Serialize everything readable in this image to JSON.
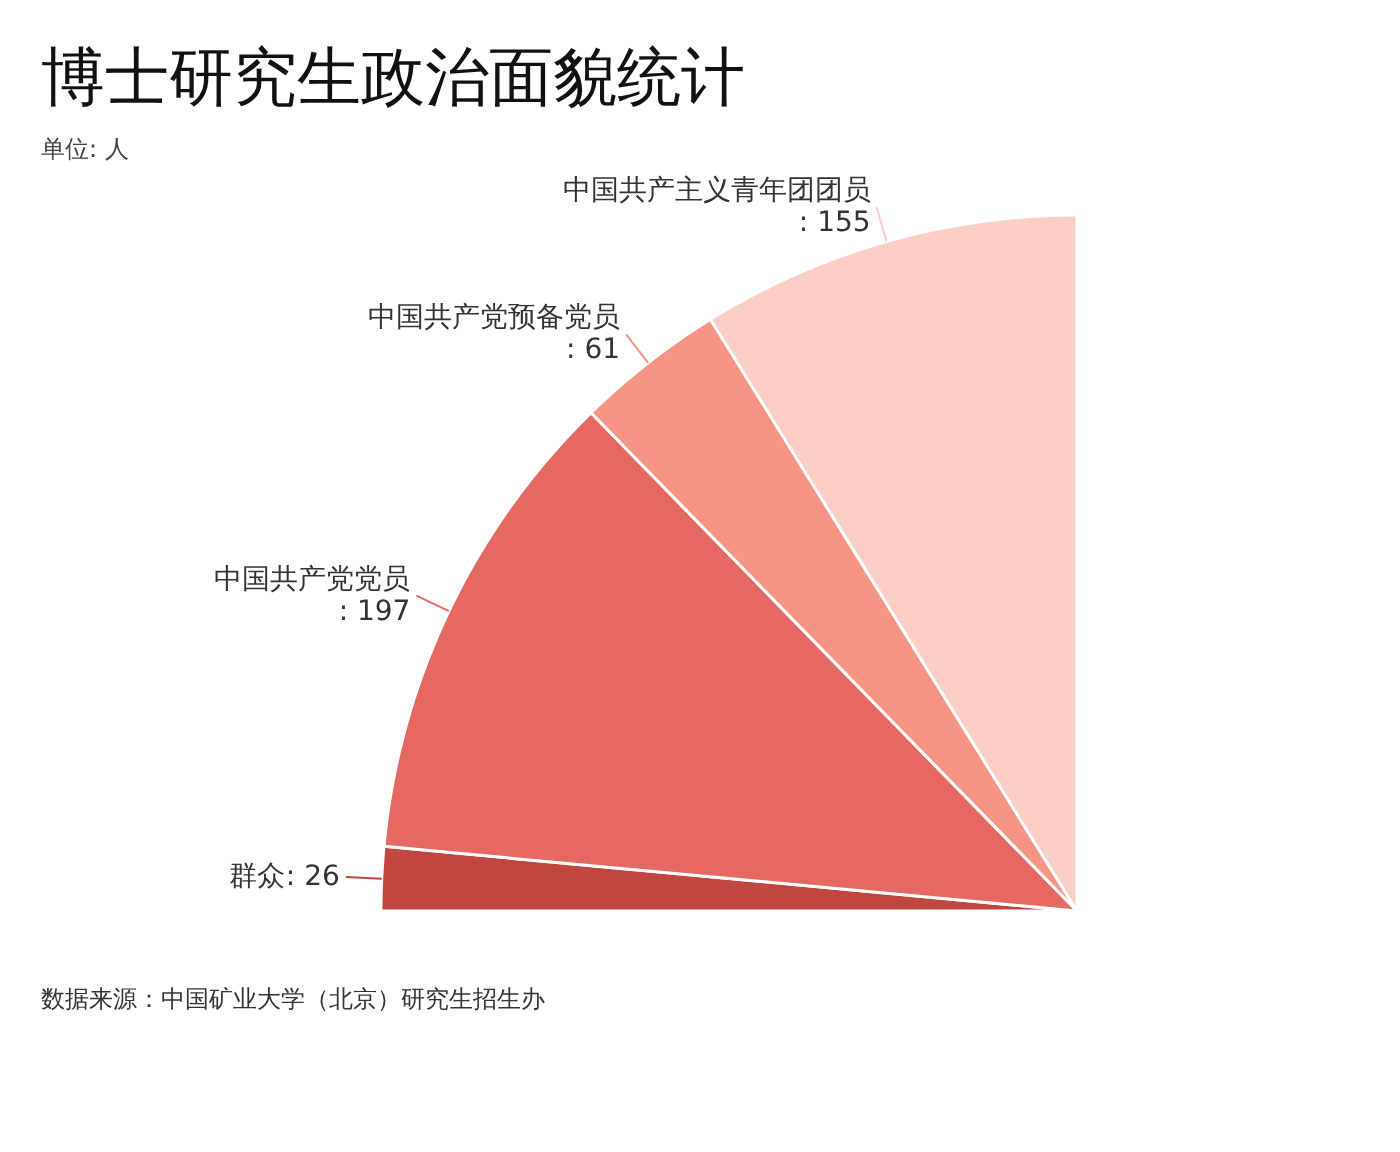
{
  "chart_data": {
    "type": "pie",
    "title": "博士研究生政治面貌统计",
    "subtitle": "单位: 人",
    "categories": [
      "群众",
      "中国共产党党员",
      "中国共产党预备党员",
      "中国共产主义青年团团员"
    ],
    "values": [
      26,
      197,
      61,
      155
    ],
    "colors": [
      "#c04642",
      "#e66862",
      "#f69485",
      "#fbcfc7"
    ],
    "value_labels": [
      ": 26",
      ": 197",
      ": 61",
      ": 155"
    ],
    "annotations": [
      "数据来源：中国矿业大学（北京）研究生招生办"
    ]
  }
}
